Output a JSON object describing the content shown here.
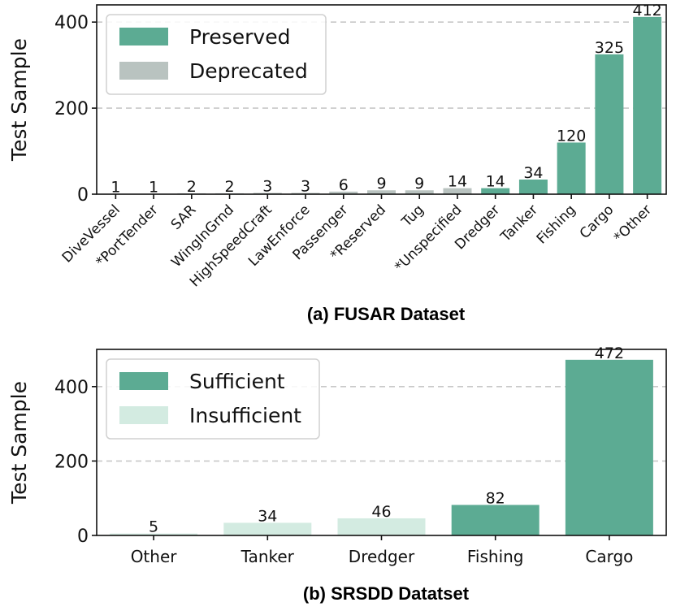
{
  "chart_data": [
    {
      "type": "bar",
      "title": "(a) FUSAR Dataset",
      "xlabel": "",
      "ylabel": "Test Sample",
      "ylim": [
        0,
        440
      ],
      "yticks": [
        0,
        200,
        400
      ],
      "grid": "horizontal-dashed",
      "legend_position": "top-left",
      "categories": [
        "DiveVessel",
        "*PortTender",
        "SAR",
        "WingInGrnd",
        "HighSpeedCraft",
        "LawEnforce",
        "Passenger",
        "*Reserved",
        "Tug",
        "*Unspecified",
        "Dredger",
        "Tanker",
        "Fishing",
        "Cargo",
        "*Other"
      ],
      "values": [
        1,
        1,
        2,
        2,
        3,
        3,
        6,
        9,
        9,
        14,
        14,
        34,
        120,
        325,
        412
      ],
      "groups": [
        "Deprecated",
        "Deprecated",
        "Deprecated",
        "Deprecated",
        "Deprecated",
        "Deprecated",
        "Deprecated",
        "Deprecated",
        "Deprecated",
        "Deprecated",
        "Preserved",
        "Preserved",
        "Preserved",
        "Preserved",
        "Preserved"
      ],
      "legend": [
        {
          "name": "Preserved",
          "color": "#5cab93"
        },
        {
          "name": "Deprecated",
          "color": "#b9c3c0"
        }
      ]
    },
    {
      "type": "bar",
      "title": "(b) SRSDD Datatset",
      "xlabel": "",
      "ylabel": "Test Sample",
      "ylim": [
        0,
        500
      ],
      "yticks": [
        0,
        200,
        400
      ],
      "grid": "horizontal-dashed",
      "legend_position": "top-left",
      "categories": [
        "Other",
        "Tanker",
        "Dredger",
        "Fishing",
        "Cargo"
      ],
      "values": [
        5,
        34,
        46,
        82,
        472
      ],
      "groups": [
        "Insufficient",
        "Insufficient",
        "Insufficient",
        "Sufficient",
        "Sufficient"
      ],
      "legend": [
        {
          "name": "Sufficient",
          "color": "#5cab93"
        },
        {
          "name": "Insufficient",
          "color": "#d3ebe1"
        }
      ]
    }
  ]
}
